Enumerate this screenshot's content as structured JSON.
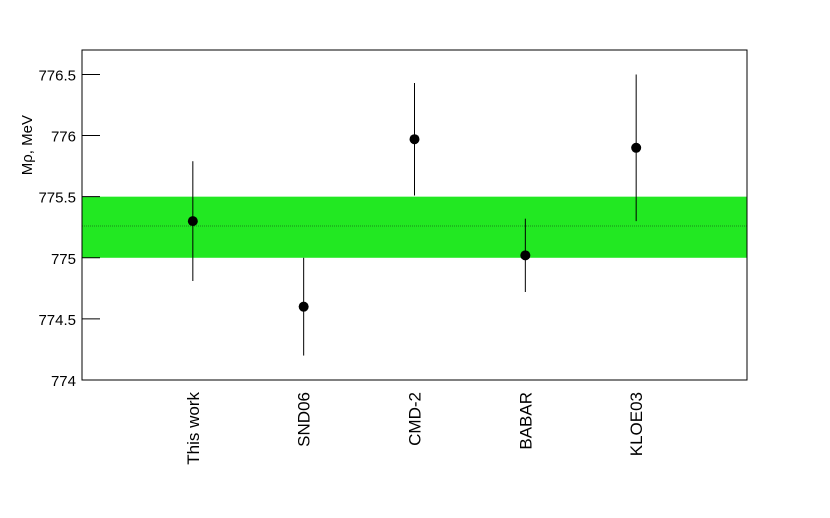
{
  "chart_data": {
    "type": "errorbar",
    "y_label": "Mρ, MeV",
    "categories": [
      "This work",
      "SND06",
      "CMD-2",
      "BABAR",
      "KLOE03"
    ],
    "values": [
      775.3,
      774.6,
      775.97,
      775.02,
      775.9
    ],
    "errors": [
      0.49,
      0.4,
      0.46,
      0.3,
      0.6
    ],
    "color": "#000000",
    "band": [
      775.0,
      775.5
    ],
    "band_center": 775.26,
    "band_color": "#22e822",
    "ylim": [
      774,
      776.7
    ],
    "yticks": [
      774,
      774.5,
      775,
      775.5,
      776,
      776.5
    ]
  }
}
